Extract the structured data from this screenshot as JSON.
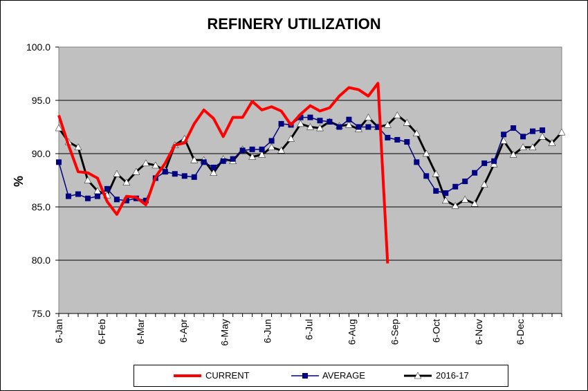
{
  "chart_data": {
    "type": "line",
    "title": "REFINERY UTILIZATION",
    "ylabel": "%",
    "xlabel": "",
    "ylim": [
      75,
      100
    ],
    "yticks": [
      "75.0",
      "80.0",
      "85.0",
      "90.0",
      "95.0",
      "100.0"
    ],
    "x_tick_labels": [
      "6-Jan",
      "6-Feb",
      "6-Mar",
      "6-Apr",
      "6-May",
      "6-Jun",
      "6-Jul",
      "6-Aug",
      "6-Sep",
      "6-Oct",
      "6-Nov",
      "6-Dec"
    ],
    "grid": "horizontal",
    "legend_position": "bottom",
    "series": [
      {
        "name": "CURRENT",
        "color": "#ff0000",
        "marker": "none",
        "values": [
          93.6,
          90.8,
          88.3,
          88.2,
          87.7,
          85.5,
          84.3,
          86.0,
          85.9,
          85.2,
          87.8,
          89.1,
          90.8,
          91.0,
          92.8,
          94.1,
          93.3,
          91.6,
          93.4,
          93.4,
          94.9,
          94.1,
          94.4,
          94.0,
          92.7,
          93.7,
          94.5,
          94.0,
          94.3,
          95.4,
          96.2,
          96.0,
          95.4,
          96.6,
          79.7
        ]
      },
      {
        "name": "AVERAGE",
        "color": "#000080",
        "marker": "square",
        "values": [
          89.2,
          86.0,
          86.2,
          85.8,
          86.0,
          86.7,
          85.7,
          85.6,
          85.8,
          85.6,
          87.7,
          88.3,
          88.1,
          87.9,
          87.8,
          89.2,
          88.7,
          89.3,
          89.5,
          90.3,
          90.4,
          90.4,
          91.2,
          92.8,
          92.7,
          93.4,
          93.4,
          93.1,
          93.0,
          92.5,
          93.2,
          92.5,
          92.5,
          92.5,
          91.5,
          91.3,
          91.1,
          89.2,
          87.9,
          86.5,
          86.3,
          86.9,
          87.4,
          88.2,
          89.1,
          89.3,
          91.8,
          92.4,
          91.6,
          92.1,
          92.2
        ]
      },
      {
        "name": "2016-17",
        "color": "#000000",
        "marker": "triangle",
        "values": [
          92.4,
          91.1,
          90.6,
          87.5,
          86.5,
          86.1,
          88.1,
          87.3,
          88.3,
          89.1,
          88.9,
          88.4,
          90.8,
          91.4,
          89.4,
          89.4,
          88.2,
          89.5,
          89.3,
          90.4,
          89.7,
          89.9,
          90.6,
          90.3,
          91.4,
          92.8,
          92.5,
          92.4,
          93.0,
          92.6,
          92.7,
          92.3,
          93.4,
          92.5,
          92.7,
          93.6,
          92.9,
          91.9,
          90.0,
          88.1,
          85.6,
          85.1,
          85.7,
          85.3,
          87.1,
          89.0,
          91.2,
          89.9,
          90.6,
          90.6,
          91.6,
          91.0,
          92.0
        ]
      }
    ]
  }
}
